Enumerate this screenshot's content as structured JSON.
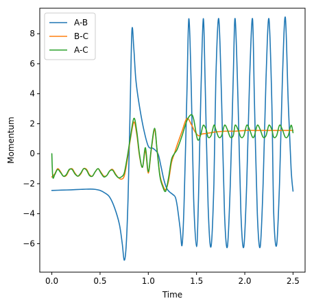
{
  "chart_data": {
    "type": "line",
    "title": "",
    "xlabel": "Time",
    "ylabel": "Momentum",
    "xlim": [
      -0.125,
      2.625
    ],
    "ylim": [
      -7.9,
      9.7
    ],
    "xticks": [
      0.0,
      0.5,
      1.0,
      1.5,
      2.0,
      2.5
    ],
    "xtick_labels": [
      "0.0",
      "0.5",
      "1.0",
      "1.5",
      "2.0",
      "2.5"
    ],
    "yticks": [
      -6,
      -4,
      -2,
      0,
      2,
      4,
      6,
      8
    ],
    "ytick_labels": [
      "−6",
      "−4",
      "−2",
      "0",
      "2",
      "4",
      "6",
      "8"
    ],
    "grid": false,
    "legend": "top-left",
    "series": [
      {
        "name": "A-B",
        "color": "#1f77b4",
        "x": [
          0.0,
          0.1,
          0.2,
          0.3,
          0.4,
          0.45,
          0.5,
          0.55,
          0.6,
          0.65,
          0.7,
          0.73,
          0.75,
          0.77,
          0.79,
          0.81,
          0.83,
          0.85,
          0.87,
          0.9,
          0.95,
          1.0,
          1.05,
          1.1,
          1.13,
          1.16,
          1.19,
          1.22,
          1.25,
          1.28,
          1.3,
          1.33,
          1.35,
          1.37,
          1.4,
          1.42,
          1.445,
          1.47,
          1.5,
          1.52,
          1.545,
          1.57,
          1.59,
          1.62,
          1.65,
          1.68,
          1.7,
          1.73,
          1.76,
          1.79,
          1.82,
          1.85,
          1.88,
          1.9,
          1.93,
          1.96,
          1.99,
          2.02,
          2.05,
          2.08,
          2.1,
          2.13,
          2.16,
          2.19,
          2.22,
          2.25,
          2.28,
          2.3,
          2.33,
          2.36,
          2.39,
          2.42,
          2.45,
          2.48,
          2.5
        ],
        "y": [
          -2.45,
          -2.43,
          -2.41,
          -2.38,
          -2.36,
          -2.38,
          -2.45,
          -2.62,
          -2.9,
          -3.6,
          -4.7,
          -6.0,
          -7.1,
          -6.2,
          -3.0,
          2.5,
          8.2,
          7.0,
          5.0,
          3.5,
          1.7,
          0.5,
          0.35,
          0.0,
          -0.8,
          -1.7,
          -2.3,
          -2.55,
          -2.7,
          -2.9,
          -3.5,
          -5.0,
          -6.1,
          -3.5,
          4.0,
          9.0,
          4.5,
          -3.0,
          -6.2,
          -3.0,
          4.0,
          9.0,
          4.5,
          -3.5,
          -6.2,
          -2.0,
          5.0,
          9.0,
          3.5,
          -4.0,
          -6.2,
          -2.0,
          5.0,
          9.0,
          3.5,
          -4.0,
          -6.2,
          -2.0,
          5.0,
          9.0,
          3.5,
          -4.0,
          -6.2,
          -2.0,
          5.0,
          9.0,
          3.5,
          -4.0,
          -6.1,
          -2.0,
          5.0,
          9.1,
          3.5,
          -1.0,
          -2.5
        ]
      },
      {
        "name": "B-C",
        "color": "#ff7f0e",
        "x": [
          0.0,
          0.03,
          0.06,
          0.09,
          0.12,
          0.15,
          0.18,
          0.21,
          0.24,
          0.27,
          0.3,
          0.33,
          0.36,
          0.39,
          0.42,
          0.45,
          0.48,
          0.51,
          0.54,
          0.57,
          0.6,
          0.63,
          0.66,
          0.69,
          0.72,
          0.75,
          0.78,
          0.81,
          0.85,
          0.88,
          0.91,
          0.94,
          0.97,
          1.0,
          1.03,
          1.065,
          1.09,
          1.12,
          1.15,
          1.18,
          1.21,
          1.24,
          1.27,
          1.3,
          1.35,
          1.4,
          1.45,
          1.48,
          1.52,
          1.55,
          1.6,
          1.65,
          1.7,
          1.8,
          1.9,
          2.0,
          2.1,
          2.2,
          2.3,
          2.4,
          2.5
        ],
        "y": [
          -1.55,
          -1.35,
          -1.0,
          -1.2,
          -1.5,
          -1.45,
          -1.1,
          -1.0,
          -1.3,
          -1.5,
          -1.35,
          -1.0,
          -1.05,
          -1.4,
          -1.5,
          -1.2,
          -1.0,
          -1.25,
          -1.5,
          -1.45,
          -1.15,
          -1.05,
          -1.35,
          -1.6,
          -1.7,
          -1.5,
          -0.5,
          0.8,
          2.1,
          1.3,
          -0.2,
          -0.9,
          0.2,
          -1.3,
          0.2,
          1.6,
          0.3,
          -1.4,
          -2.1,
          -2.4,
          -1.8,
          -0.6,
          0.0,
          0.6,
          1.5,
          2.35,
          1.9,
          1.5,
          1.2,
          1.3,
          1.35,
          1.4,
          1.45,
          1.5,
          1.5,
          1.55,
          1.55,
          1.55,
          1.55,
          1.55,
          1.55
        ]
      },
      {
        "name": "A-C",
        "color": "#2ca02c",
        "x": [
          0.0,
          0.01,
          0.03,
          0.06,
          0.09,
          0.12,
          0.15,
          0.18,
          0.21,
          0.24,
          0.27,
          0.3,
          0.33,
          0.36,
          0.39,
          0.42,
          0.45,
          0.48,
          0.51,
          0.54,
          0.57,
          0.6,
          0.63,
          0.66,
          0.69,
          0.72,
          0.75,
          0.78,
          0.81,
          0.85,
          0.88,
          0.91,
          0.94,
          0.97,
          1.0,
          1.03,
          1.065,
          1.09,
          1.12,
          1.15,
          1.18,
          1.21,
          1.24,
          1.27,
          1.3,
          1.35,
          1.4,
          1.445,
          1.47,
          1.5,
          1.52,
          1.545,
          1.57,
          1.6,
          1.62,
          1.65,
          1.68,
          1.7,
          1.73,
          1.76,
          1.79,
          1.82,
          1.85,
          1.88,
          1.9,
          1.93,
          1.96,
          1.99,
          2.02,
          2.05,
          2.08,
          2.1,
          2.13,
          2.16,
          2.19,
          2.22,
          2.25,
          2.28,
          2.3,
          2.33,
          2.36,
          2.39,
          2.42,
          2.45,
          2.48,
          2.5
        ],
        "y": [
          0.0,
          -1.55,
          -1.4,
          -1.05,
          -1.25,
          -1.5,
          -1.4,
          -1.05,
          -1.05,
          -1.35,
          -1.5,
          -1.3,
          -1.0,
          -1.1,
          -1.45,
          -1.5,
          -1.2,
          -1.0,
          -1.3,
          -1.55,
          -1.45,
          -1.15,
          -1.1,
          -1.4,
          -1.6,
          -1.55,
          -1.3,
          -0.3,
          0.9,
          2.35,
          1.5,
          -0.1,
          -0.9,
          0.4,
          -1.2,
          0.3,
          1.7,
          0.3,
          -1.5,
          -2.2,
          -2.5,
          -1.6,
          -0.4,
          0.0,
          0.3,
          1.2,
          2.2,
          2.6,
          2.3,
          1.2,
          0.9,
          1.3,
          1.9,
          1.6,
          1.1,
          1.2,
          1.9,
          1.6,
          1.1,
          1.2,
          1.9,
          1.6,
          1.1,
          1.2,
          1.9,
          1.6,
          1.1,
          1.2,
          1.9,
          1.6,
          1.1,
          1.2,
          1.9,
          1.6,
          1.1,
          1.2,
          1.9,
          1.6,
          1.1,
          1.2,
          1.9,
          1.6,
          1.1,
          1.2,
          1.9,
          1.4
        ]
      }
    ]
  }
}
